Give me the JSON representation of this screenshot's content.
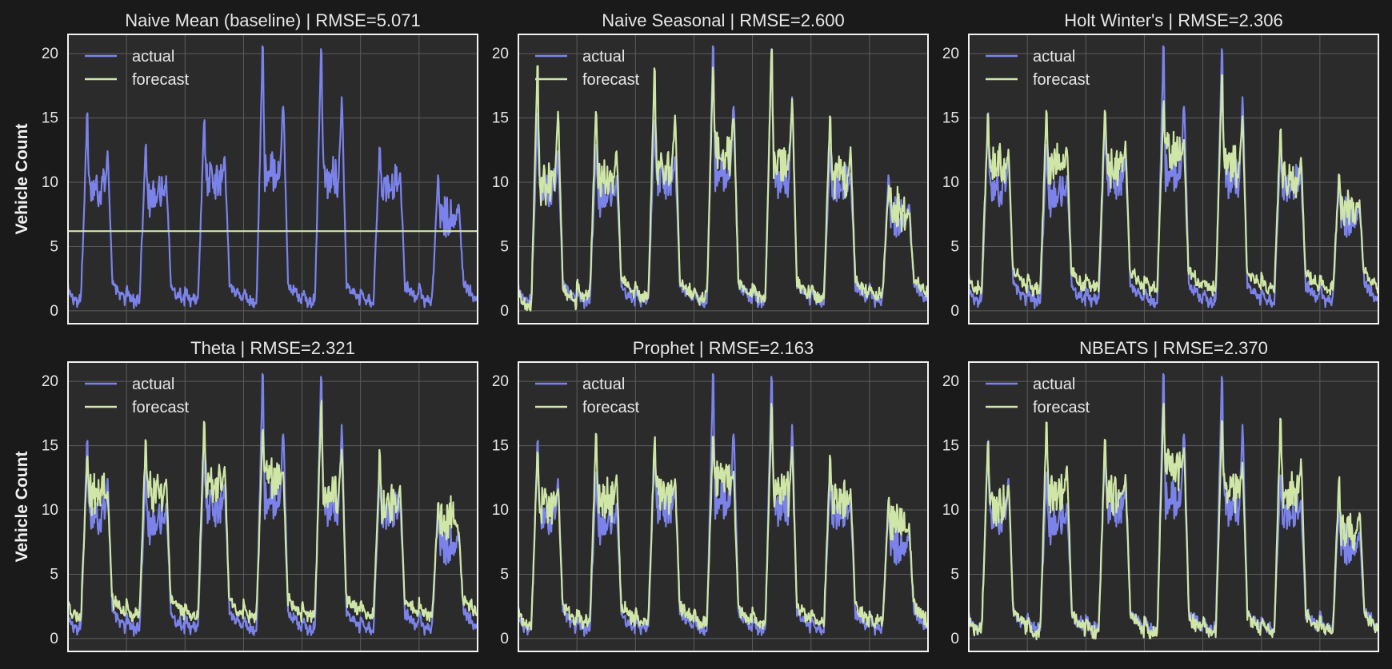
{
  "figure": {
    "ylabel": "Vehicle Count",
    "colors": {
      "background": "#1a1a1a",
      "axes_face": "#2b2b2b",
      "axes_edge": "#f2f2f2",
      "grid": "#5c5c5c",
      "actual": "#7b83eb",
      "forecast": "#cfe6a6"
    }
  },
  "chart_data": [
    {
      "type": "line",
      "title": "Naive Mean (baseline) | RMSE=5.071",
      "model": "Naive Mean (baseline)",
      "rmse": 5.071,
      "ylabel": "Vehicle Count",
      "yticks": [
        0,
        5,
        10,
        15,
        20
      ],
      "ylim": [
        -1,
        21.5
      ],
      "xlim": [
        0,
        672
      ],
      "x_unit": "hour index",
      "grid": true,
      "legend_position": "upper left",
      "series": [
        {
          "name": "actual",
          "color": "#7b83eb",
          "day_peaks": [
            15,
            12.7,
            14.5,
            20.2,
            20.4,
            12.7,
            10.3
          ],
          "day_base": [
            9,
            8.5,
            9.8,
            10.5,
            10,
            9.5,
            7
          ],
          "day_low": [
            0.6,
            0.5,
            0.5,
            0.5,
            0.5,
            0.5,
            0.6
          ]
        },
        {
          "name": "forecast",
          "color": "#cfe6a6",
          "constant": 6.2
        }
      ]
    },
    {
      "type": "line",
      "title": "Naive Seasonal | RMSE=2.600",
      "model": "Naive Seasonal",
      "rmse": 2.6,
      "yticks": [
        0,
        5,
        10,
        15,
        20
      ],
      "ylim": [
        -1,
        21.5
      ],
      "xlim": [
        0,
        672
      ],
      "x_unit": "hour index",
      "grid": true,
      "legend_position": "upper left",
      "series": [
        {
          "name": "actual",
          "color": "#7b83eb",
          "day_peaks": [
            15,
            12.7,
            14.5,
            20.2,
            20.4,
            12.7,
            10.3
          ],
          "day_base": [
            9,
            8.5,
            9.8,
            10.5,
            10,
            9.5,
            7
          ],
          "day_low": [
            0.6,
            0.5,
            0.5,
            0.5,
            0.5,
            0.5,
            0.6
          ]
        },
        {
          "name": "forecast",
          "color": "#cfe6a6",
          "day_peaks": [
            19,
            15.5,
            18.5,
            18.7,
            20.4,
            15.3,
            9.5
          ],
          "day_base": [
            9.5,
            10,
            11,
            12,
            11,
            10,
            7.5
          ],
          "day_low": [
            0.2,
            1.0,
            0.8,
            0.8,
            0.8,
            0.8,
            1.0
          ]
        }
      ]
    },
    {
      "type": "line",
      "title": "Holt Winter's | RMSE=2.306",
      "model": "Holt Winter's",
      "rmse": 2.306,
      "yticks": [
        0,
        5,
        10,
        15,
        20
      ],
      "ylim": [
        -1,
        21.5
      ],
      "xlim": [
        0,
        672
      ],
      "x_unit": "hour index",
      "grid": true,
      "legend_position": "upper left",
      "series": [
        {
          "name": "actual",
          "color": "#7b83eb",
          "day_peaks": [
            15,
            12.7,
            14.5,
            20.2,
            20.4,
            12.7,
            10.3
          ],
          "day_base": [
            9,
            8.5,
            9.8,
            10.5,
            10,
            9.5,
            7
          ],
          "day_low": [
            0.6,
            0.5,
            0.5,
            0.5,
            0.5,
            0.5,
            0.6
          ]
        },
        {
          "name": "forecast",
          "color": "#cfe6a6",
          "day_peaks": [
            15.3,
            15.5,
            15.7,
            16,
            18.2,
            14.3,
            10.3
          ],
          "day_base": [
            11,
            11,
            11,
            12,
            11,
            10,
            8
          ],
          "day_low": [
            1.5,
            1.5,
            1.5,
            1.5,
            1.5,
            1.5,
            1.5
          ]
        }
      ]
    },
    {
      "type": "line",
      "title": "Theta | RMSE=2.321",
      "model": "Theta",
      "rmse": 2.321,
      "ylabel": "Vehicle Count",
      "yticks": [
        0,
        5,
        10,
        15,
        20
      ],
      "ylim": [
        -1,
        21.5
      ],
      "xlim": [
        0,
        672
      ],
      "x_unit": "hour index",
      "grid": true,
      "legend_position": "upper left",
      "series": [
        {
          "name": "actual",
          "color": "#7b83eb",
          "day_peaks": [
            15,
            12.7,
            14.5,
            20.2,
            20.4,
            12.7,
            10.3
          ],
          "day_base": [
            9,
            8.5,
            9.8,
            10.5,
            10,
            9.5,
            7
          ],
          "day_low": [
            0.6,
            0.5,
            0.5,
            0.5,
            0.5,
            0.5,
            0.6
          ]
        },
        {
          "name": "forecast",
          "color": "#cfe6a6",
          "day_peaks": [
            14,
            15.3,
            16.7,
            16,
            18.2,
            14.3,
            10.3
          ],
          "day_base": [
            11,
            11,
            11.5,
            12,
            11,
            10,
            9
          ],
          "day_low": [
            1.5,
            1.6,
            1.5,
            1.5,
            1.6,
            1.5,
            1.6
          ]
        }
      ]
    },
    {
      "type": "line",
      "title": "Prophet | RMSE=2.163",
      "model": "Prophet",
      "rmse": 2.163,
      "yticks": [
        0,
        5,
        10,
        15,
        20
      ],
      "ylim": [
        -1,
        21.5
      ],
      "xlim": [
        0,
        672
      ],
      "x_unit": "hour index",
      "grid": true,
      "legend_position": "upper left",
      "series": [
        {
          "name": "actual",
          "color": "#7b83eb",
          "day_peaks": [
            15,
            12.7,
            14.5,
            20.2,
            20.4,
            12.7,
            10.3
          ],
          "day_base": [
            9,
            8.5,
            9.8,
            10.5,
            10,
            9.5,
            7
          ],
          "day_low": [
            0.6,
            0.5,
            0.5,
            0.5,
            0.5,
            0.5,
            0.6
          ]
        },
        {
          "name": "forecast",
          "color": "#cfe6a6",
          "day_peaks": [
            14.5,
            15.7,
            15.3,
            15.5,
            18,
            14,
            10.7
          ],
          "day_base": [
            10,
            10.5,
            11,
            12,
            11,
            10.5,
            8.5
          ],
          "day_low": [
            1.0,
            1.0,
            1.0,
            1.0,
            1.0,
            1.0,
            1.0
          ]
        }
      ]
    },
    {
      "type": "line",
      "title": "NBEATS | RMSE=2.370",
      "model": "NBEATS",
      "rmse": 2.37,
      "yticks": [
        0,
        5,
        10,
        15,
        20
      ],
      "ylim": [
        -1,
        21.5
      ],
      "xlim": [
        0,
        672
      ],
      "x_unit": "hour index",
      "grid": true,
      "legend_position": "upper left",
      "series": [
        {
          "name": "actual",
          "color": "#7b83eb",
          "day_peaks": [
            15,
            12.7,
            14.5,
            20.2,
            20.4,
            12.7,
            10.3
          ],
          "day_base": [
            9,
            8.5,
            9.8,
            10.5,
            10,
            9.5,
            7
          ],
          "day_low": [
            0.6,
            0.5,
            0.5,
            0.5,
            0.5,
            0.5,
            0.6
          ]
        },
        {
          "name": "forecast",
          "color": "#cfe6a6",
          "day_peaks": [
            15,
            16.5,
            15.5,
            18.2,
            17,
            17,
            12.3
          ],
          "day_base": [
            10,
            11,
            11,
            13,
            11,
            11,
            8
          ],
          "day_low": [
            0.5,
            0.3,
            0.3,
            0.2,
            0.3,
            0.3,
            0.3
          ]
        }
      ]
    }
  ]
}
